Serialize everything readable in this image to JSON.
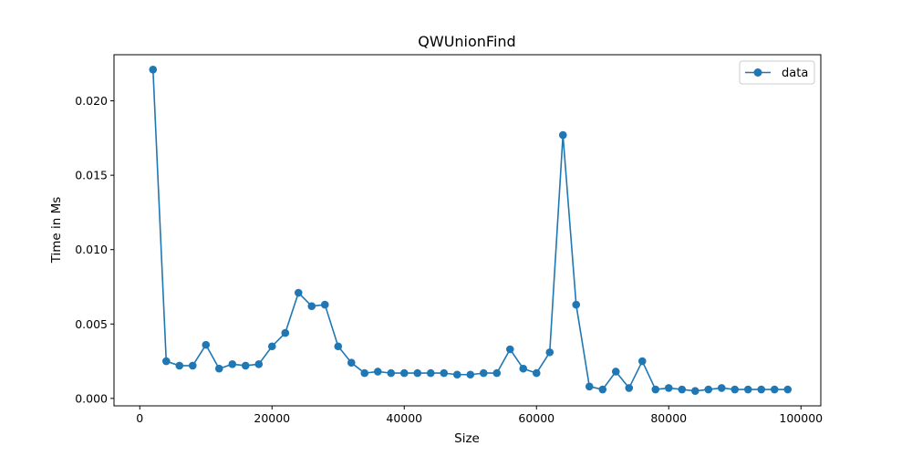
{
  "chart_data": {
    "type": "line",
    "title": "QWUnionFind",
    "xlabel": "Size",
    "ylabel": "Time in Ms",
    "xlim": [
      -3900,
      103000
    ],
    "ylim": [
      -0.0005,
      0.0231
    ],
    "xticks": [
      0,
      20000,
      40000,
      60000,
      80000,
      100000
    ],
    "xtick_labels": [
      "0",
      "20000",
      "40000",
      "60000",
      "80000",
      "100000"
    ],
    "yticks": [
      0.0,
      0.005,
      0.01,
      0.015,
      0.02
    ],
    "ytick_labels": [
      "0.000",
      "0.005",
      "0.010",
      "0.015",
      "0.020"
    ],
    "grid": false,
    "legend_position": "top-right",
    "series": [
      {
        "name": "data",
        "color": "#1f77b4",
        "marker": "circle",
        "x": [
          2000,
          4000,
          6000,
          8000,
          10000,
          12000,
          14000,
          16000,
          18000,
          20000,
          22000,
          24000,
          26000,
          28000,
          30000,
          32000,
          34000,
          36000,
          38000,
          40000,
          42000,
          44000,
          46000,
          48000,
          50000,
          52000,
          54000,
          56000,
          58000,
          60000,
          62000,
          64000,
          66000,
          68000,
          70000,
          72000,
          74000,
          76000,
          78000,
          80000,
          82000,
          84000,
          86000,
          88000,
          90000,
          92000,
          94000,
          96000,
          98000
        ],
        "y": [
          0.0221,
          0.0025,
          0.0022,
          0.0022,
          0.0036,
          0.002,
          0.0023,
          0.0022,
          0.0023,
          0.0035,
          0.0044,
          0.0071,
          0.0062,
          0.0063,
          0.0035,
          0.0024,
          0.0017,
          0.0018,
          0.0017,
          0.0017,
          0.0017,
          0.0017,
          0.0017,
          0.0016,
          0.0016,
          0.0017,
          0.0017,
          0.0033,
          0.002,
          0.0017,
          0.0031,
          0.0177,
          0.0063,
          0.0008,
          0.0006,
          0.0018,
          0.0007,
          0.0025,
          0.0006,
          0.0007,
          0.0006,
          0.0005,
          0.0006,
          0.0007,
          0.0006,
          0.0006,
          0.0006,
          0.0006,
          0.0006
        ]
      }
    ]
  }
}
